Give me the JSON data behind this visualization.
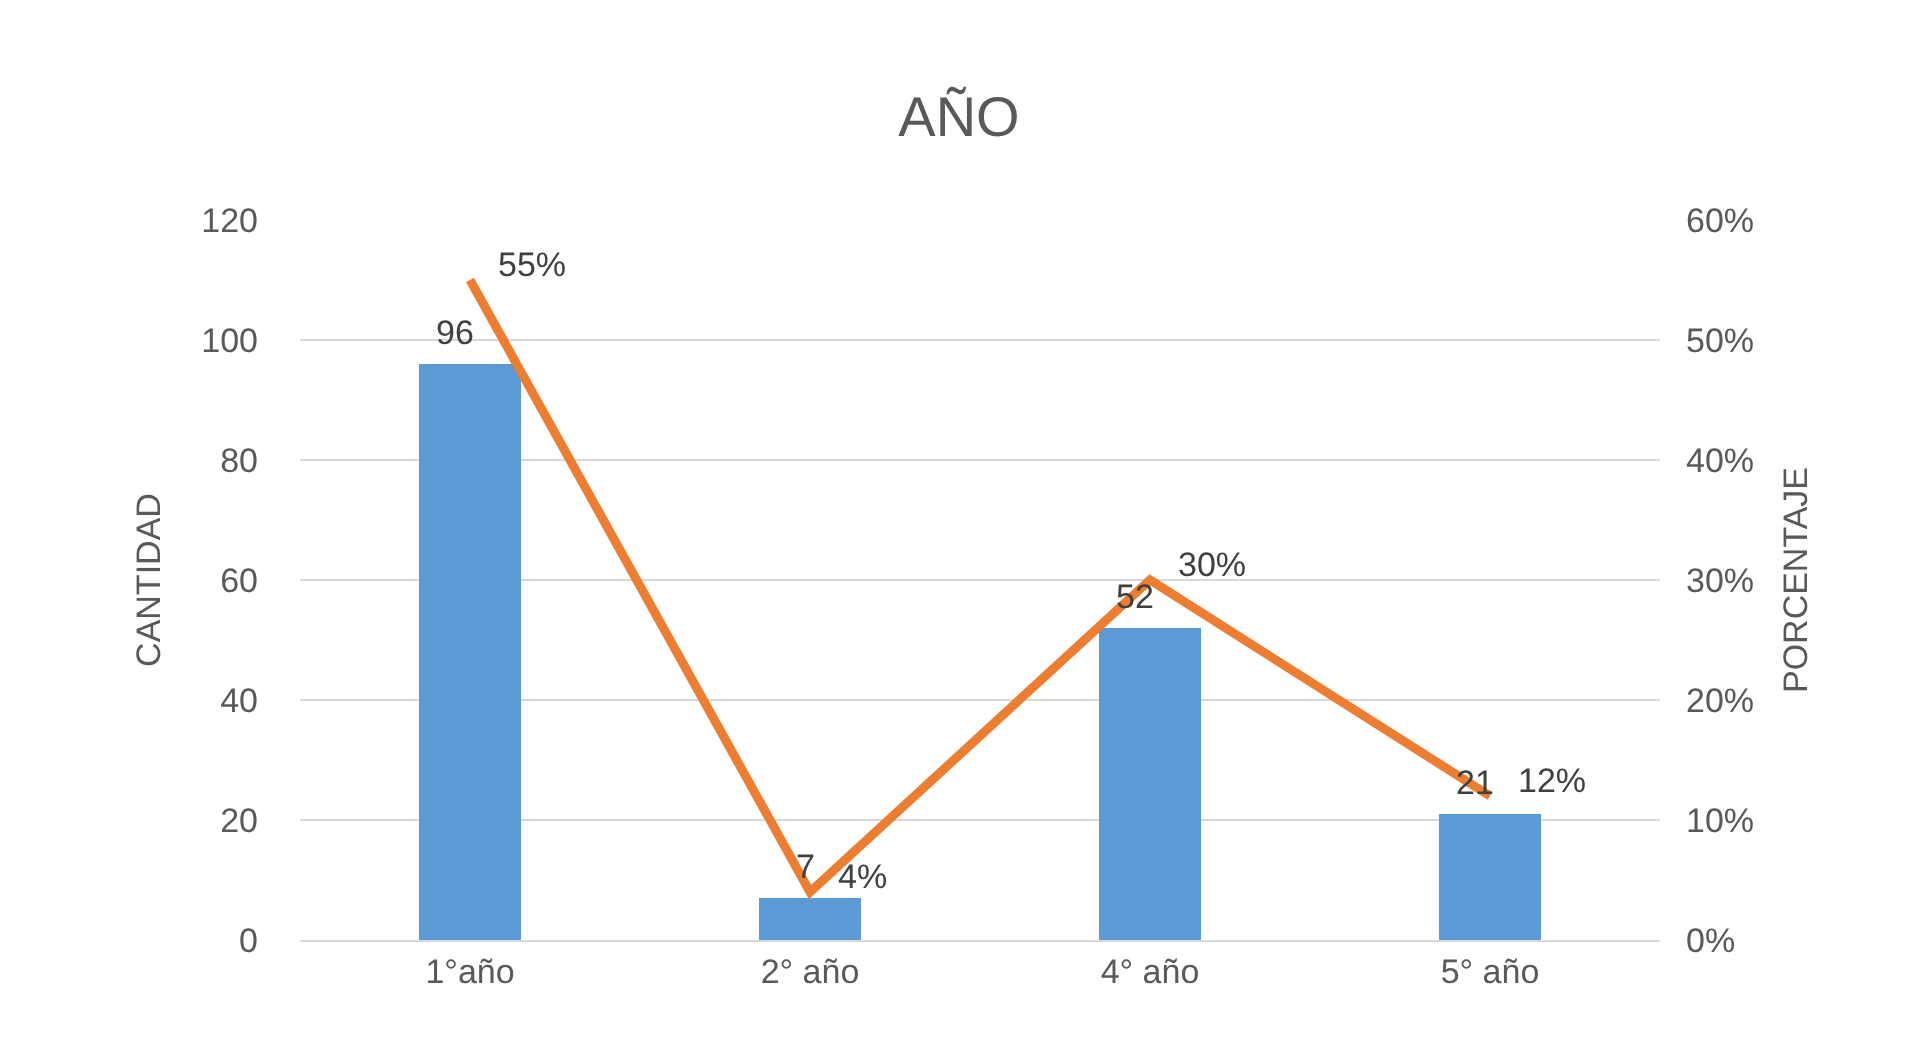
{
  "chart_data": {
    "type": "bar",
    "title": "AÑO",
    "ylabel": "CANTIDAD",
    "y2label": "PORCENTAJE",
    "categories": [
      "1°año",
      "2° año",
      "4° año",
      "5° año"
    ],
    "series": [
      {
        "color": "#5b9bd5",
        "values": [
          96,
          7,
          52,
          21
        ],
        "value_labels": [
          "96",
          "7",
          "52",
          "21"
        ]
      },
      {
        "type": "line",
        "axis": "y2",
        "color": "#ed7d31",
        "values": [
          55,
          4,
          30,
          12
        ],
        "value_labels": [
          "55%",
          "4%",
          "30%",
          "12%"
        ],
        "marker": "none",
        "line_style": "solid"
      }
    ],
    "ylim": [
      0,
      120
    ],
    "yticks": [
      0,
      20,
      40,
      60,
      80,
      100,
      120
    ],
    "y2lim": [
      0,
      60
    ],
    "y2ticks": [
      {
        "value": 0,
        "label": "0%"
      },
      {
        "value": 10,
        "label": "10%"
      },
      {
        "value": 20,
        "label": "20%"
      },
      {
        "value": 30,
        "label": "30%"
      },
      {
        "value": 40,
        "label": "40%"
      },
      {
        "value": 50,
        "label": "50%"
      },
      {
        "value": 60,
        "label": "60%"
      }
    ],
    "grid": "y"
  }
}
